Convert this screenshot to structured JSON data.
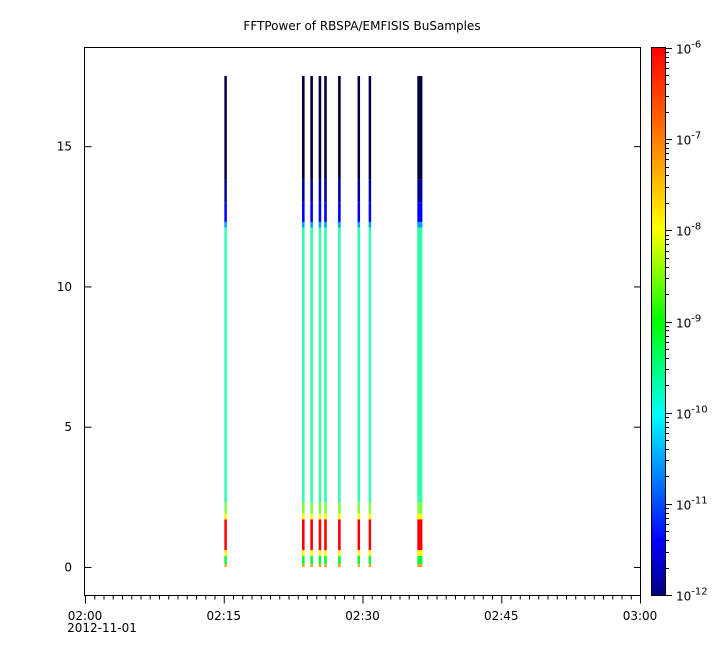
{
  "chart_data": {
    "type": "heatmap",
    "title": "FFTPower of RBSPA/EMFISIS  BuSamples",
    "xlabel": "",
    "ylabel": "",
    "x_ticks": [
      "02:00",
      "02:15",
      "02:30",
      "02:45",
      "03:00"
    ],
    "x_date_label": "2012-11-01",
    "xlim_minutes": [
      0,
      60
    ],
    "ylim": [
      -1,
      18.5
    ],
    "y_ticks": [
      "0",
      "5",
      "10",
      "15"
    ],
    "y_tick_values": [
      0,
      5,
      10,
      15
    ],
    "colorbar": {
      "scale": "log",
      "range": [
        1e-12,
        1e-06
      ],
      "tick_exponents": [
        -12,
        -11,
        -10,
        -9,
        -8,
        -7,
        -6
      ],
      "colormap": [
        "#000080",
        "#0000ff",
        "#00ffff",
        "#00ff00",
        "#ffff00",
        "#ff8000",
        "#ff0000"
      ]
    },
    "bursts": [
      {
        "time": "02:15:12",
        "minute": 15.2,
        "width_min": 0.18
      },
      {
        "time": "02:23:36",
        "minute": 23.6,
        "width_min": 0.28
      },
      {
        "time": "02:24:30",
        "minute": 24.5,
        "width_min": 0.28
      },
      {
        "time": "02:25:24",
        "minute": 25.4,
        "width_min": 0.28
      },
      {
        "time": "02:26:00",
        "minute": 26.0,
        "width_min": 0.28
      },
      {
        "time": "02:27:30",
        "minute": 27.5,
        "width_min": 0.28
      },
      {
        "time": "02:29:36",
        "minute": 29.6,
        "width_min": 0.24
      },
      {
        "time": "02:30:48",
        "minute": 30.8,
        "width_min": 0.24
      },
      {
        "time": "02:36:12",
        "minute": 36.2,
        "width_min": 0.55
      }
    ],
    "spectrum_profile": [
      {
        "y_from": 0.0,
        "y_to": 0.1,
        "color": "#ffa000"
      },
      {
        "y_from": 0.1,
        "y_to": 0.4,
        "color": "#00ff40"
      },
      {
        "y_from": 0.4,
        "y_to": 0.6,
        "color": "#ffff00"
      },
      {
        "y_from": 0.6,
        "y_to": 1.7,
        "color": "#ff0000"
      },
      {
        "y_from": 1.7,
        "y_to": 1.9,
        "color": "#ffff00"
      },
      {
        "y_from": 1.9,
        "y_to": 2.3,
        "color": "#80ff40"
      },
      {
        "y_from": 2.3,
        "y_to": 12.1,
        "color": "#30ffb0"
      },
      {
        "y_from": 12.1,
        "y_to": 12.3,
        "color": "#00a0ff"
      },
      {
        "y_from": 12.3,
        "y_to": 13.0,
        "color": "#0000ff"
      },
      {
        "y_from": 13.0,
        "y_to": 13.8,
        "color": "#0000a0"
      },
      {
        "y_from": 13.8,
        "y_to": 17.5,
        "color": "#000040"
      }
    ]
  }
}
